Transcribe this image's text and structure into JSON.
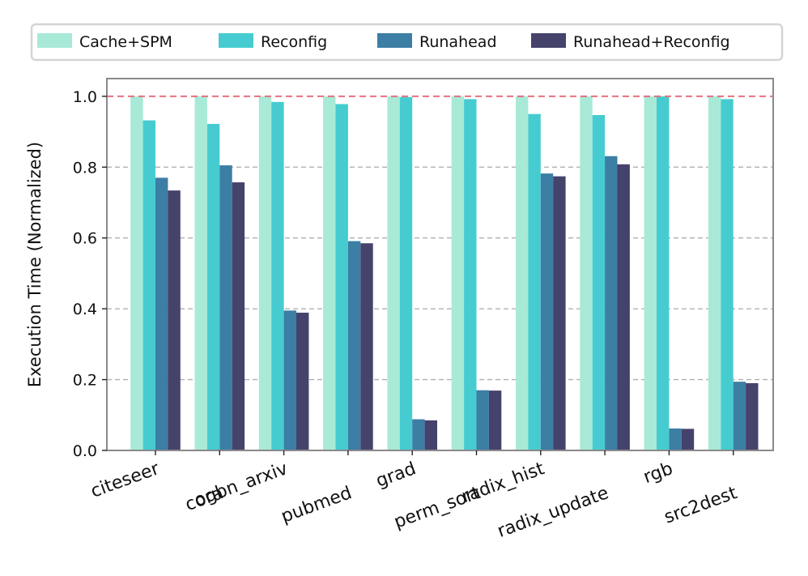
{
  "chart_data": {
    "type": "bar",
    "title": "",
    "xlabel": "",
    "ylabel": "Execution Time (Normalized)",
    "ylim": [
      0,
      1.05
    ],
    "yticks": [
      "0.0",
      "0.2",
      "0.4",
      "0.6",
      "0.8",
      "1.0"
    ],
    "grid": "horizontal dashed",
    "reference_line": {
      "y": 1.0,
      "color": "#e8707e",
      "style": "dashed"
    },
    "legend_position": "top",
    "categories": [
      "citeseer",
      "cora",
      "ogbn_arxiv",
      "pubmed",
      "grad",
      "perm_sort",
      "radix_hist",
      "radix_update",
      "rgb",
      "src2dest"
    ],
    "series": [
      {
        "name": "Cache+SPM",
        "color": "#a8ead7",
        "values": [
          1.0,
          1.0,
          1.0,
          1.0,
          1.0,
          1.0,
          1.0,
          1.0,
          1.0,
          1.0
        ]
      },
      {
        "name": "Reconfig",
        "color": "#46ccd0",
        "values": [
          0.932,
          0.922,
          0.984,
          0.978,
          0.998,
          0.992,
          0.95,
          0.947,
          1.0,
          0.992
        ]
      },
      {
        "name": "Runahead",
        "color": "#3c7ea4",
        "values": [
          0.77,
          0.805,
          0.395,
          0.591,
          0.088,
          0.17,
          0.782,
          0.831,
          0.062,
          0.194
        ]
      },
      {
        "name": "Runahead+Reconfig",
        "color": "#45426b",
        "values": [
          0.734,
          0.757,
          0.389,
          0.585,
          0.085,
          0.169,
          0.774,
          0.808,
          0.061,
          0.19
        ]
      }
    ]
  }
}
